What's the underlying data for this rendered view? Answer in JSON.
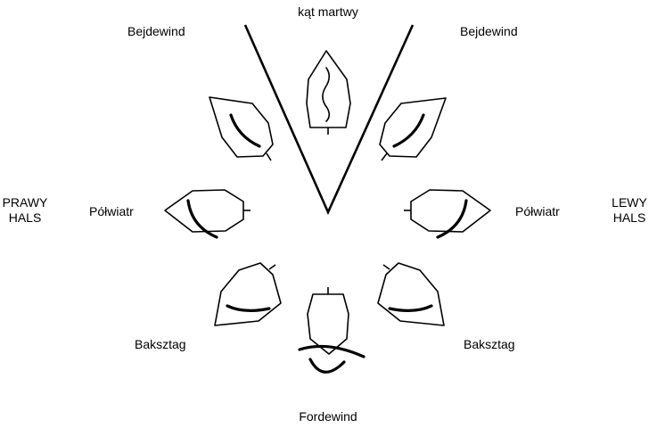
{
  "labels": {
    "dead_zone": "kąt martwy",
    "close_hauled_left": "Bejdewind",
    "close_hauled_right": "Bejdewind",
    "beam_reach_left": "Półwiatr",
    "beam_reach_right": "Półwiatr",
    "broad_reach_left": "Baksztag",
    "broad_reach_right": "Baksztag",
    "running": "Fordewind",
    "starboard_tack_line1": "PRAWY",
    "starboard_tack_line2": "HALS",
    "port_tack_line1": "LEWY",
    "port_tack_line2": "HALS"
  },
  "colors": {
    "ink": "#000000",
    "background": "#ffffff"
  }
}
